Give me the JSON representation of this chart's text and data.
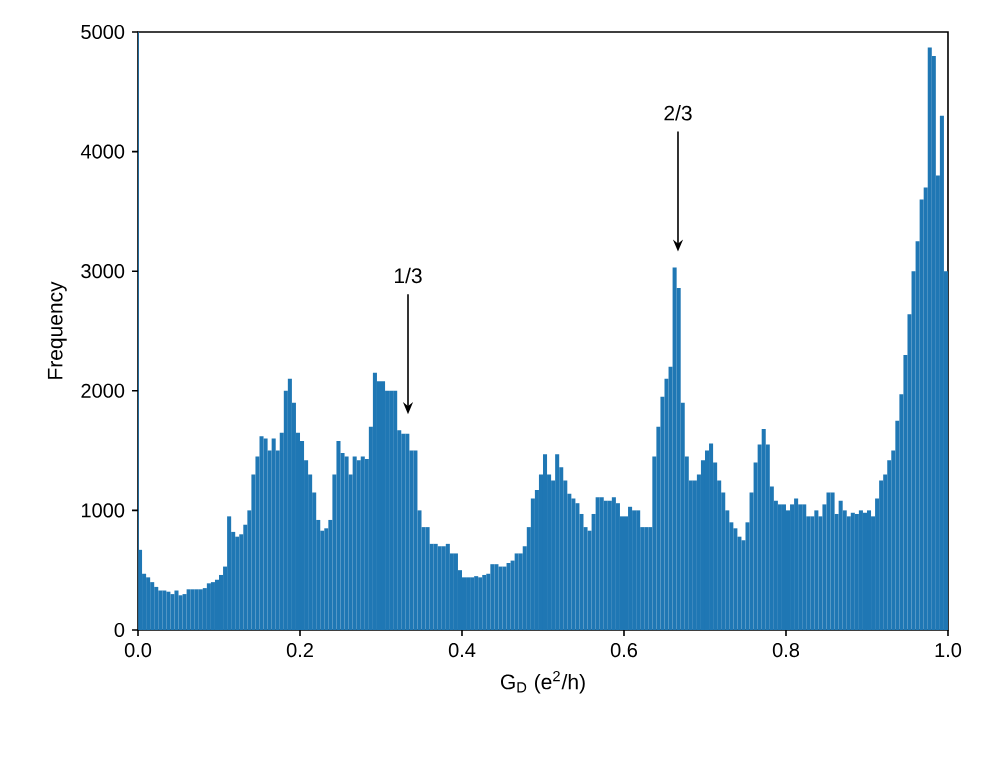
{
  "chart_data": {
    "type": "histogram",
    "xlabel": "G$_{D}$ (e$^{2}$/h)",
    "ylabel": "Frequency",
    "bins": [
      0,
      0.001,
      0.005,
      0.01,
      0.015,
      0.02,
      0.025,
      0.03,
      0.035,
      0.04,
      0.045,
      0.05,
      0.055,
      0.06,
      0.065,
      0.07,
      0.075,
      0.08,
      0.085,
      0.09,
      0.095,
      0.1,
      0.105,
      0.11,
      0.115,
      0.12,
      0.125,
      0.13,
      0.135,
      0.14,
      0.145,
      0.15,
      0.155,
      0.16,
      0.165,
      0.17,
      0.175,
      0.18,
      0.185,
      0.19,
      0.195,
      0.2,
      0.205,
      0.21,
      0.215,
      0.22,
      0.225,
      0.23,
      0.235,
      0.24,
      0.245,
      0.25,
      0.255,
      0.26,
      0.265,
      0.27,
      0.275,
      0.28,
      0.285,
      0.29,
      0.295,
      0.3,
      0.305,
      0.31,
      0.315,
      0.32,
      0.325,
      0.33,
      0.335,
      0.34,
      0.345,
      0.35,
      0.355,
      0.36,
      0.365,
      0.37,
      0.375,
      0.38,
      0.385,
      0.39,
      0.395,
      0.4,
      0.405,
      0.41,
      0.415,
      0.42,
      0.425,
      0.43,
      0.435,
      0.44,
      0.445,
      0.45,
      0.455,
      0.46,
      0.465,
      0.47,
      0.475,
      0.48,
      0.485,
      0.49,
      0.495,
      0.5,
      0.505,
      0.51,
      0.515,
      0.52,
      0.525,
      0.53,
      0.535,
      0.54,
      0.545,
      0.55,
      0.555,
      0.56,
      0.565,
      0.57,
      0.575,
      0.58,
      0.585,
      0.59,
      0.595,
      0.6,
      0.605,
      0.61,
      0.615,
      0.62,
      0.625,
      0.63,
      0.635,
      0.64,
      0.645,
      0.65,
      0.655,
      0.66,
      0.665,
      0.67,
      0.675,
      0.68,
      0.685,
      0.69,
      0.695,
      0.7,
      0.705,
      0.71,
      0.715,
      0.72,
      0.725,
      0.73,
      0.735,
      0.74,
      0.745,
      0.75,
      0.755,
      0.76,
      0.765,
      0.77,
      0.775,
      0.78,
      0.785,
      0.79,
      0.795,
      0.8,
      0.805,
      0.81,
      0.815,
      0.82,
      0.825,
      0.83,
      0.835,
      0.84,
      0.845,
      0.85,
      0.855,
      0.86,
      0.865,
      0.87,
      0.875,
      0.88,
      0.885,
      0.89,
      0.895,
      0.9,
      0.905,
      0.91,
      0.915,
      0.92,
      0.925,
      0.93,
      0.935,
      0.94,
      0.945,
      0.95,
      0.955,
      0.96,
      0.965,
      0.97,
      0.975,
      0.98,
      0.985,
      0.99,
      0.995,
      1.0
    ],
    "values": [
      5000,
      670,
      470,
      440,
      400,
      360,
      330,
      330,
      320,
      300,
      330,
      290,
      300,
      340,
      340,
      340,
      340,
      350,
      390,
      400,
      420,
      460,
      530,
      950,
      820,
      780,
      800,
      880,
      1000,
      1300,
      1450,
      1620,
      1600,
      1500,
      1600,
      1500,
      1650,
      2000,
      2100,
      1900,
      1650,
      1580,
      1420,
      1300,
      1150,
      920,
      830,
      850,
      920,
      1300,
      1580,
      1480,
      1450,
      1300,
      1450,
      1420,
      1450,
      1430,
      1700,
      2150,
      2080,
      2080,
      2000,
      2000,
      2000,
      1670,
      1640,
      1640,
      1500,
      1500,
      1000,
      860,
      860,
      720,
      720,
      700,
      700,
      720,
      640,
      640,
      500,
      440,
      440,
      440,
      450,
      440,
      460,
      470,
      550,
      550,
      530,
      530,
      560,
      580,
      640,
      640,
      700,
      860,
      1100,
      1170,
      1300,
      1470,
      1300,
      1250,
      1470,
      1360,
      1250,
      1140,
      1100,
      1060,
      970,
      860,
      830,
      970,
      1110,
      1110,
      1080,
      1080,
      1110,
      1060,
      950,
      950,
      1030,
      1000,
      1000,
      860,
      860,
      860,
      1450,
      1700,
      1950,
      2100,
      2200,
      3030,
      2860,
      1900,
      1450,
      1250,
      1250,
      1300,
      1420,
      1500,
      1560,
      1400,
      1250,
      1150,
      1000,
      900,
      850,
      780,
      750,
      900,
      1150,
      1400,
      1550,
      1680,
      1550,
      1200,
      1080,
      1050,
      1050,
      1000,
      1050,
      1100,
      1050,
      1050,
      950,
      950,
      1000,
      950,
      1050,
      1150,
      1150,
      970,
      1080,
      1000,
      950,
      980,
      970,
      1000,
      980,
      1000,
      950,
      1100,
      1250,
      1300,
      1420,
      1500,
      1750,
      1970,
      2300,
      2640,
      3000,
      3250,
      3600,
      3700,
      4870,
      4800,
      3800,
      4300,
      3000
    ],
    "color": "#1f77b4",
    "xlim": [
      0,
      1
    ],
    "ylim": [
      0,
      5000
    ],
    "xticks": [
      {
        "value": 0,
        "label": "0.0"
      },
      {
        "value": 0.2,
        "label": "0.2"
      },
      {
        "value": 0.4,
        "label": "0.4"
      },
      {
        "value": 0.6,
        "label": "0.6"
      },
      {
        "value": 0.8,
        "label": "0.8"
      },
      {
        "value": 1,
        "label": "1.0"
      }
    ],
    "yticks": [
      0,
      1000,
      2000,
      3000,
      4000,
      5000
    ],
    "annotations": [
      "1/3",
      "2/3"
    ]
  }
}
